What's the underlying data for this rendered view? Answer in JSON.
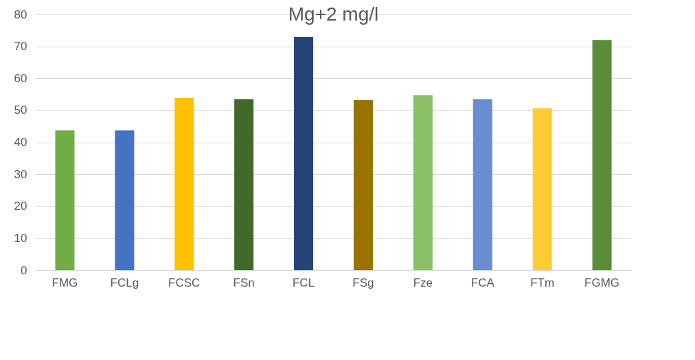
{
  "chart_data": {
    "type": "bar",
    "title": "Mg+2 mg/l",
    "categories": [
      "FMG",
      "FCLg",
      "FCSC",
      "FSn",
      "FCL",
      "FSg",
      "Fze",
      "FCA",
      "FTm",
      "FGMG"
    ],
    "values": [
      43.7,
      43.7,
      53.9,
      53.5,
      72.9,
      53.2,
      54.7,
      53.5,
      50.6,
      72.0
    ],
    "colors": [
      "#70ad47",
      "#4472c4",
      "#ffc000",
      "#43682b",
      "#264478",
      "#997300",
      "#8cc168",
      "#698ed0",
      "#ffcd33",
      "#5b8c3a"
    ],
    "ylim": [
      0,
      80
    ],
    "yticks": [
      0,
      10,
      20,
      30,
      40,
      50,
      60,
      70,
      80
    ],
    "grid": "y"
  }
}
